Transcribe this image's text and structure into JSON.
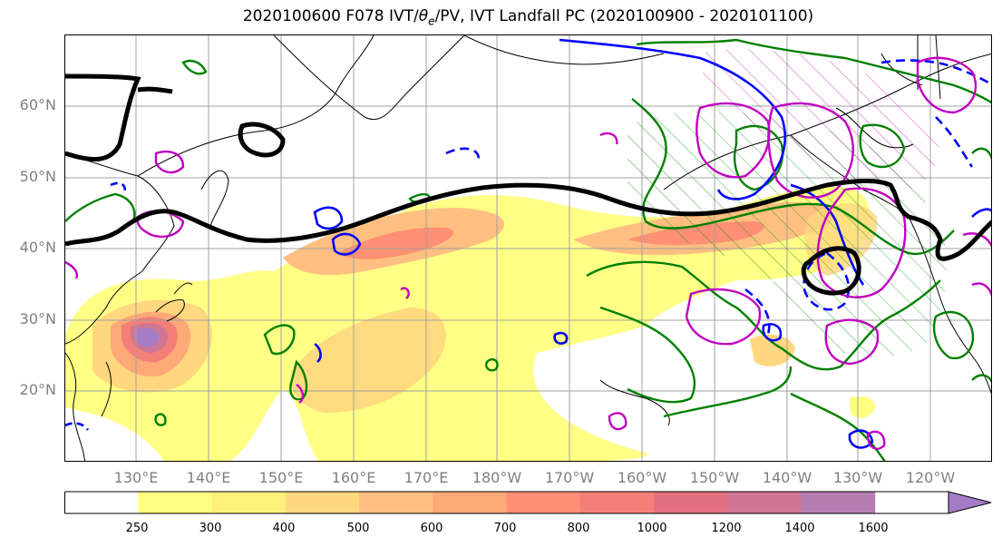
{
  "title": {
    "prefix": "2020100600 F078 IVT/",
    "theta_symbol": "θ",
    "theta_sub": "e",
    "suffix": "/PV, IVT Landfall PC (2020100900 - 2020101100)"
  },
  "latitude_labels": [
    "60°N",
    "50°N",
    "40°N",
    "30°N",
    "20°N"
  ],
  "longitude_labels": [
    "130°E",
    "140°E",
    "150°E",
    "160°E",
    "170°E",
    "180°W",
    "170°W",
    "160°W",
    "150°W",
    "140°W",
    "130°W",
    "120°W"
  ],
  "colorbar": {
    "ticks": [
      "250",
      "300",
      "400",
      "500",
      "600",
      "700",
      "800",
      "1000",
      "1200",
      "1400",
      "1600"
    ],
    "colors": [
      "#ffffff",
      "#ffff80",
      "#fff07a",
      "#ffd77e",
      "#ffbf80",
      "#ffa878",
      "#ff8f75",
      "#f47f78",
      "#e2707e",
      "#cf7694",
      "#b77db3",
      "#a57cc6"
    ]
  },
  "contour_colors": {
    "ivt_contour": "#000000",
    "theta_e": "#008000",
    "pv_positive": "#0000ff",
    "landfall_pc": "#c000c0"
  }
}
